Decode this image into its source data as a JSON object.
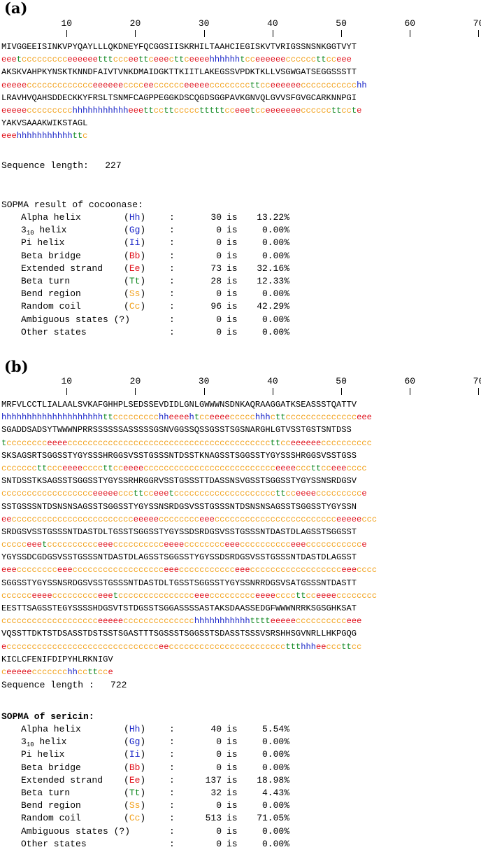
{
  "panels": [
    {
      "label": "(a)",
      "ruler": [
        "10",
        "20",
        "30",
        "40",
        "50",
        "60",
        "70"
      ],
      "rows": [
        {
          "seq": "MIVGGEEISINKVPYQAYLLLQKDNEYFQCGGSIISKRHILTAAHCIEGISKVTVRIGSSNSNKGGTVYT",
          "ss": "eeetccccccccceeeeeetttccceettceeecttceeeehhhhhhtcceeeeeeccccccttcceee"
        },
        {
          "seq": "AKSKVAHPKYNSKTKNNDFAIVTVNKDMAIDGKTTKIITLAKEGSSVPDKTKLLVSGWGATSEGGSSSTT",
          "ss": "eeeeeccccccccccccceeeeeecccceecccccceeeeeccccccccttcceeeeeeccccccccccchh"
        },
        {
          "seq": "LRAVHVQAHSDDECKKYFRSLTSNMFCAGPPEGGKDSCQGDSGGPAVKGNVQLGVVSFGVGCARKNNPGI",
          "ss": "eeeeeccccccccchhhhhhhhhhheeettccttccccctttttcceeetcceeeeeeeccccccttccte"
        },
        {
          "seq": "YAKVSAAAKWIKSTAGL",
          "ss": "eeehhhhhhhhhhhttc"
        }
      ],
      "seq_length": "Sequence length:   227",
      "result_title": "SOPMA result of cocoonase:",
      "result_bold": false,
      "results": [
        {
          "pre": "Alpha helix",
          "sub": "",
          "post": "",
          "open": "(",
          "code": "Hh",
          "close": ")",
          "cls": "col-h",
          "count": "30",
          "is": "is",
          "pct": "13.22%"
        },
        {
          "pre": "3",
          "sub": "10",
          "post": " helix",
          "open": "(",
          "code": "Gg",
          "close": ")",
          "cls": "col-h",
          "count": "0",
          "is": "is",
          "pct": "0.00%"
        },
        {
          "pre": "Pi helix",
          "sub": "",
          "post": "",
          "open": "(",
          "code": "Ii",
          "close": ")",
          "cls": "col-h",
          "count": "0",
          "is": "is",
          "pct": "0.00%"
        },
        {
          "pre": "Beta bridge",
          "sub": "",
          "post": "",
          "open": "(",
          "code": "Bb",
          "close": ")",
          "cls": "col-e",
          "count": "0",
          "is": "is",
          "pct": "0.00%"
        },
        {
          "pre": "Extended strand",
          "sub": "",
          "post": "",
          "open": "(",
          "code": "Ee",
          "close": ")",
          "cls": "col-e",
          "count": "73",
          "is": "is",
          "pct": "32.16%"
        },
        {
          "pre": "Beta turn",
          "sub": "",
          "post": "",
          "open": "(",
          "code": "Tt",
          "close": ")",
          "cls": "col-t",
          "count": "28",
          "is": "is",
          "pct": "12.33%"
        },
        {
          "pre": "Bend region",
          "sub": "",
          "post": "",
          "open": "(",
          "code": "Ss",
          "close": ")",
          "cls": "col-c",
          "count": "0",
          "is": "is",
          "pct": "0.00%"
        },
        {
          "pre": "Random coil",
          "sub": "",
          "post": "",
          "open": "(",
          "code": "Cc",
          "close": ")",
          "cls": "col-c",
          "count": "96",
          "is": "is",
          "pct": "42.29%"
        },
        {
          "pre": "Ambiguous states (?)",
          "sub": "",
          "post": "",
          "open": "",
          "code": "",
          "close": "",
          "cls": "",
          "count": "0",
          "is": "is",
          "pct": "0.00%"
        },
        {
          "pre": "Other states",
          "sub": "",
          "post": "",
          "open": "",
          "code": "",
          "close": "",
          "cls": "",
          "count": "0",
          "is": "is",
          "pct": "0.00%"
        }
      ]
    },
    {
      "label": "(b)",
      "ruler": [
        "10",
        "20",
        "30",
        "40",
        "50",
        "60",
        "70"
      ],
      "rows": [
        {
          "seq": "MRFVLCCTLIALAALSVKAFGHHPLSEDSSEVDIDLGNLGWWWNSDNKAQRAAGGATKSEASSSTQATTV",
          "ss": "hhhhhhhhhhhhhhhhhhhhttccccccccchheeeehtcceeeeccccchhhcttcccccccccccccceee"
        },
        {
          "seq": "SGADDSADSYTWWWNPRRSSSSSSASSSSSGSNVGGSSQSSGSSTSGSNARGHLGTVSSTGSTSNTDSS",
          "ss": "tcccccccceeeeccccccccccccccccccccccccccccccccccccccccttcceeeeeecccccccccc"
        },
        {
          "seq": "SKSAGSRTSGGSSTYGYSSSHRGGSVSSTGSSSNTDSSTKNAGSSTSGGSSTYGYSSSHRGGSVSSTGSS",
          "ss": "cccccccttccceeeeccccttcceeeecccccccccccccccccccccccccceeeecccttcceeecccc"
        },
        {
          "seq": "SNTDSSTKSAGSSTSGGSSTYGYSSRHRGGRVSSTGSSSTTDASSNSVGSSTSGGSSTYGYSSNSRDGSV",
          "ss": "cccccccccccccccccceeeeecccttcceeetccccccccccccccccccccttcceeeeccccccccce"
        },
        {
          "seq": "SSTGSSSNTDSNSNSAGSSTSGGSSTYGYSSNSRDGSVSSTGSSSNTDSNSNSAGSSTSGGSSTYGYSSN",
          "ss": "eecccccccccccccccccccccccceeeeecccccccceeecccccccccccccccccccccccceeeeeccc"
        },
        {
          "seq": "SRDGSVSSTGSSSNTDASTDLTGSSTSGGSSTYGYSSDSRDGSVSSTGSSSNTDASTDLAGSSTSGGSST",
          "ss": "ccccceeetcccccccccceeecccccccccceeeecccccccceeecccccccccceeeccccccccccce"
        },
        {
          "seq": "YGYSSDCGDGSVSSTGSSSNTDASTDLAGSSTSGGSSTYGYSSDSRDGSVSSTGSSSNTDASTDLAGSST",
          "ss": "eeecccccccceeecccccccccccccccccceeeccccccccccceeecccccccccccccccccceeecccc"
        },
        {
          "seq": "SGGSSTYGYSSNSRDGSVSSTGSSSNTDASTDLTGSSTSGGSSTYGYSSNRRDGSVSATGSSSNTDASTT",
          "ss": "cccccceeeeccccccccceeetccccccccccccccceeeccccccccceeeeccccttcceeeecccccccc"
        },
        {
          "seq": "EESTTSAGSSTEGYSSSSHDGSVTSTDGSSTSGGASSSSASTAKSDAASSEDGFWWWNRRKSGSGHKSAT",
          "ss": "ccccccccccccccccccceeeeecccccccccccccchhhhhhhhhhhtttteeeeecccccccccceee"
        },
        {
          "seq": "VQSSTTDKTSTDSASSTDSTSSTSGASTTTSGSSSTSGGSSTSDASSTSSSVSRSHHSGVNRLLHKPGQG",
          "ss": "ecccccccccccccccccccccccccccccceecccccccccccccccccccccccttthhheecccttcc"
        },
        {
          "seq": "KICLCFENIFDIPYHLRKNIGV",
          "ss": "ceeeeeccccccchhccttcce"
        }
      ],
      "seq_length": "Sequence length :   722",
      "result_title": "SOPMA of sericin:",
      "result_bold": true,
      "results": [
        {
          "pre": "Alpha helix",
          "sub": "",
          "post": "",
          "open": "(",
          "code": "Hh",
          "close": ")",
          "cls": "col-h",
          "count": "40",
          "is": "is",
          "pct": "5.54%"
        },
        {
          "pre": "3",
          "sub": "10",
          "post": " helix",
          "open": "(",
          "code": "Gg",
          "close": ")",
          "cls": "col-h",
          "count": "0",
          "is": "is",
          "pct": "0.00%"
        },
        {
          "pre": "Pi helix",
          "sub": "",
          "post": "",
          "open": "(",
          "code": "Ii",
          "close": ")",
          "cls": "col-h",
          "count": "0",
          "is": "is",
          "pct": "0.00%"
        },
        {
          "pre": "Beta bridge",
          "sub": "",
          "post": "",
          "open": "(",
          "code": "Bb",
          "close": ")",
          "cls": "col-e",
          "count": "0",
          "is": "is",
          "pct": "0.00%"
        },
        {
          "pre": "Extended strand",
          "sub": "",
          "post": "",
          "open": "(",
          "code": "Ee",
          "close": ")",
          "cls": "col-e",
          "count": "137",
          "is": "is",
          "pct": "18.98%"
        },
        {
          "pre": "Beta turn",
          "sub": "",
          "post": "",
          "open": "(",
          "code": "Tt",
          "close": ")",
          "cls": "col-t",
          "count": "32",
          "is": "is",
          "pct": "4.43%"
        },
        {
          "pre": "Bend region",
          "sub": "",
          "post": "",
          "open": "(",
          "code": "Ss",
          "close": ")",
          "cls": "col-c",
          "count": "0",
          "is": "is",
          "pct": "0.00%"
        },
        {
          "pre": "Random coil",
          "sub": "",
          "post": "",
          "open": "(",
          "code": "Cc",
          "close": ")",
          "cls": "col-c",
          "count": "513",
          "is": "is",
          "pct": "71.05%"
        },
        {
          "pre": "Ambiguous states (?)",
          "sub": "",
          "post": "",
          "open": "",
          "code": "",
          "close": "",
          "cls": "",
          "count": "0",
          "is": "is",
          "pct": "0.00%"
        },
        {
          "pre": "Other states",
          "sub": "",
          "post": "",
          "open": "",
          "code": "",
          "close": "",
          "cls": "",
          "count": "0",
          "is": "is",
          "pct": "0.00%"
        }
      ]
    }
  ]
}
